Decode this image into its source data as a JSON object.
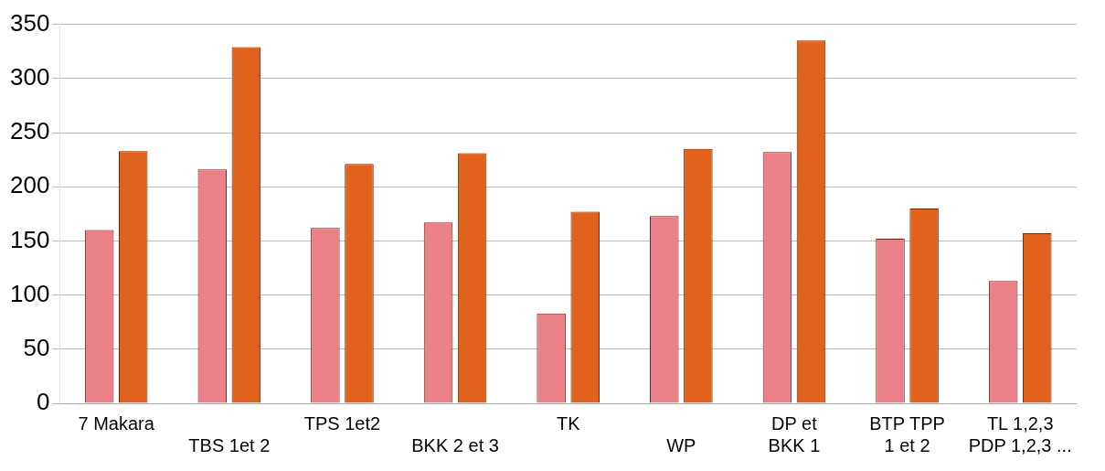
{
  "chart_data": {
    "type": "bar",
    "categories": [
      "7 Makara",
      "TBS 1et 2",
      "TPS 1et2",
      "BKK 2 et 3",
      "TK",
      "WP",
      "DP et\nBKK 1",
      "BTP TPP\n1 et 2",
      "TL 1,2,3\nPDP 1,2,3 ..."
    ],
    "series": [
      {
        "color": "#ea8088",
        "values": [
          160,
          216,
          162,
          167,
          83,
          173,
          232,
          152,
          113
        ]
      },
      {
        "color": "#e0621c",
        "values": [
          233,
          329,
          221,
          231,
          177,
          235,
          335,
          180,
          157
        ]
      }
    ],
    "ylim": [
      0,
      350
    ],
    "yticks": [
      0,
      50,
      100,
      150,
      200,
      250,
      300,
      350
    ],
    "grid": "y",
    "legend": false
  }
}
